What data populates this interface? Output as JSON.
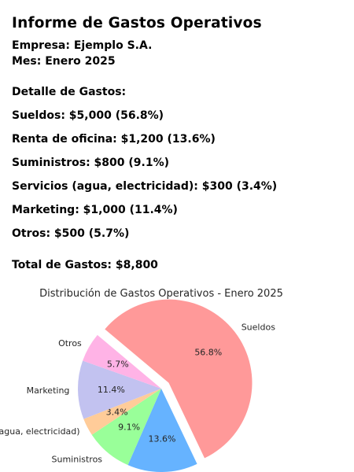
{
  "report": {
    "title": "Informe de Gastos Operativos",
    "company": "Empresa: Ejemplo S.A.",
    "month": "Mes: Enero 2025",
    "detail_heading": "Detalle de Gastos:",
    "expenses": [
      "Sueldos: $5,000 (56.8%)",
      "Renta de oficina: $1,200 (13.6%)",
      "Suministros: $800 (9.1%)",
      "Servicios (agua, electricidad): $300 (3.4%)",
      "Marketing: $1,000 (11.4%)",
      "Otros: $500 (5.7%)"
    ],
    "total": "Total de Gastos: $8,800"
  },
  "chart_data": {
    "type": "pie",
    "title": "Distribución de Gastos Operativos - Enero 2025",
    "start_angle_deg": 140,
    "direction": "clockwise",
    "exploded": "Sueldos",
    "slices": [
      {
        "label": "Sueldos",
        "value": 5000,
        "pct": "56.8%",
        "color": "#ff9999"
      },
      {
        "label": "Renta de oficina",
        "value": 1200,
        "pct": "13.6%",
        "color": "#66b3ff"
      },
      {
        "label": "Suministros",
        "value": 800,
        "pct": "9.1%",
        "color": "#99ff99"
      },
      {
        "label": "Servicios (agua, electricidad)",
        "value": 300,
        "pct": "3.4%",
        "color": "#ffcc99"
      },
      {
        "label": "Marketing",
        "value": 1000,
        "pct": "11.4%",
        "color": "#c2c2f0"
      },
      {
        "label": "Otros",
        "value": 500,
        "pct": "5.7%",
        "color": "#ffb3e6"
      }
    ]
  }
}
